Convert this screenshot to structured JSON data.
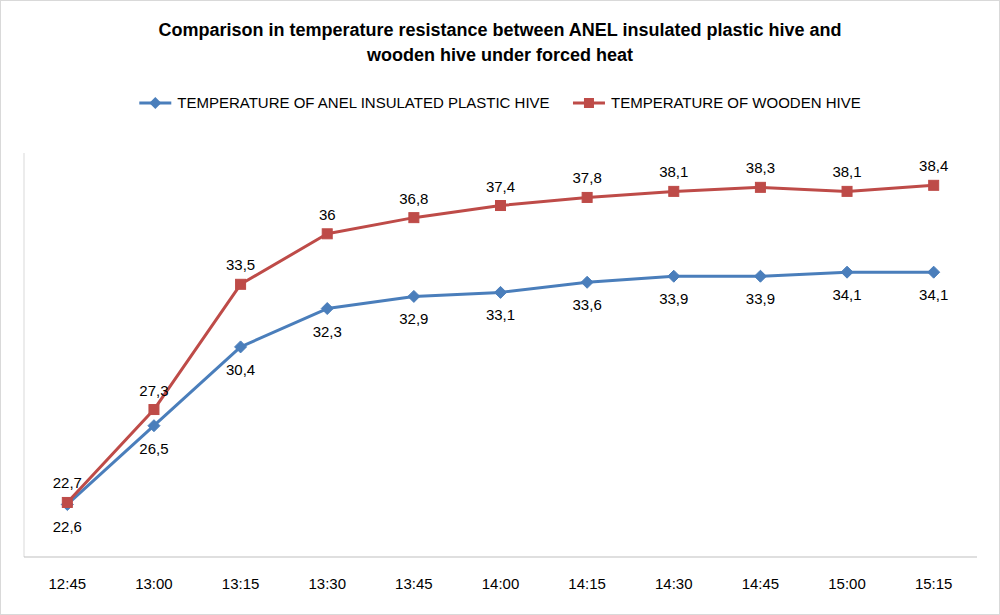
{
  "chart_data": {
    "type": "line",
    "title": "Comparison in temperature resistance between ANEL insulated plastic hive and wooden hive under forced heat",
    "categories": [
      "12:45",
      "13:00",
      "13:15",
      "13:30",
      "13:45",
      "14:00",
      "14:15",
      "14:30",
      "14:45",
      "15:00",
      "15:15"
    ],
    "series": [
      {
        "name": "TEMPERATURE OF ANEL INSULATED PLASTIC HIVE",
        "color": "#4a7ebb",
        "marker": "diamond",
        "line_style": "solid",
        "values": [
          22.6,
          26.5,
          30.4,
          32.3,
          32.9,
          33.1,
          33.6,
          33.9,
          33.9,
          34.1,
          34.1
        ],
        "value_labels": [
          "22,6",
          "26,5",
          "30,4",
          "32,3",
          "32,9",
          "33,1",
          "33,6",
          "33,9",
          "33,9",
          "34,1",
          "34,1"
        ]
      },
      {
        "name": "TEMPERATURE OF WOODEN HIVE",
        "color": "#be4b48",
        "marker": "square",
        "line_style": "solid",
        "values": [
          22.7,
          27.3,
          33.5,
          36,
          36.8,
          37.4,
          37.8,
          38.1,
          38.3,
          38.1,
          38.4
        ],
        "value_labels": [
          "22,7",
          "27,3",
          "33,5",
          "36",
          "36,8",
          "37,4",
          "37,8",
          "38,1",
          "38,3",
          "38,1",
          "38,4"
        ]
      }
    ],
    "ylim": [
      20,
      40
    ],
    "tick_labels": "x",
    "legend": "top",
    "data_labels": true,
    "grid": false
  }
}
